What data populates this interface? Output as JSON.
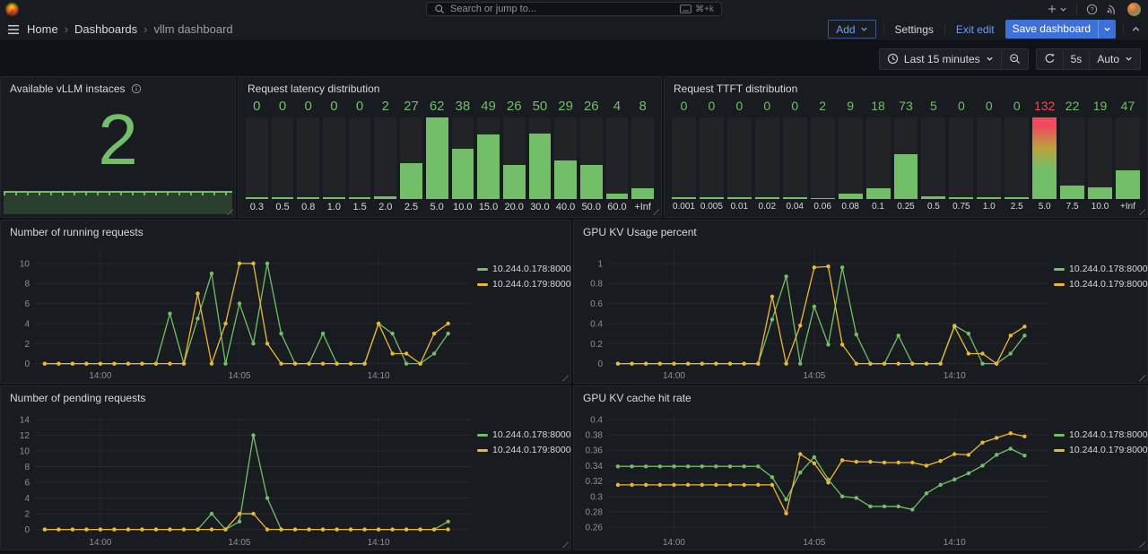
{
  "header": {
    "search": {
      "placeholder": "Search or jump to...",
      "shortcut": "⌘+k"
    },
    "breadcrumb": [
      "Home",
      "Dashboards",
      "vllm dashboard"
    ],
    "actions": {
      "add": "Add",
      "settings": "Settings",
      "exit_edit": "Exit edit",
      "save": "Save dashboard"
    }
  },
  "toolbar": {
    "time_range": "Last 15 minutes",
    "refresh_interval": "5s",
    "auto": "Auto"
  },
  "colors": {
    "green": "#73BF69",
    "yellow": "#EAB839",
    "red": "#F2495C",
    "blue": "#3D71D9",
    "link_blue": "#6E9FFF",
    "panel_bg": "#181b1f",
    "page_bg": "#111217"
  },
  "series_names": [
    "10.244.0.178:8000",
    "10.244.0.179:8000"
  ],
  "panels": {
    "stat": {
      "type": "stat",
      "title": "Available vLLM instaces",
      "value": "2",
      "color": "#73BF69"
    },
    "latency": {
      "type": "bar",
      "title": "Request latency distribution",
      "categories": [
        "0.3",
        "0.5",
        "0.8",
        "1.0",
        "1.5",
        "2.0",
        "2.5",
        "5.0",
        "10.0",
        "15.0",
        "20.0",
        "30.0",
        "40.0",
        "50.0",
        "60.0",
        "+Inf"
      ],
      "values": [
        0,
        0,
        0,
        0,
        0,
        2,
        27,
        62,
        38,
        49,
        26,
        50,
        29,
        26,
        4,
        8
      ]
    },
    "ttft": {
      "type": "bar",
      "title": "Request TTFT distribution",
      "categories": [
        "0.001",
        "0.005",
        "0.01",
        "0.02",
        "0.04",
        "0.06",
        "0.08",
        "0.1",
        "0.25",
        "0.5",
        "0.75",
        "1.0",
        "2.5",
        "5.0",
        "7.5",
        "10.0",
        "+Inf"
      ],
      "values": [
        0,
        0,
        0,
        0,
        0,
        2,
        9,
        18,
        73,
        5,
        0,
        0,
        0,
        132,
        22,
        19,
        47
      ],
      "hot_index": 13
    },
    "running": {
      "type": "line",
      "title": "Number of running requests",
      "ymin": -0.3,
      "ymax": 11.6,
      "yticks": [
        {
          "v": 0,
          "label": "0"
        },
        {
          "v": 2,
          "label": "2"
        },
        {
          "v": 4,
          "label": "4"
        },
        {
          "v": 6,
          "label": "6"
        },
        {
          "v": 8,
          "label": "8"
        },
        {
          "v": 10,
          "label": "10"
        }
      ],
      "xmin": -0.35,
      "xmax": 15.35,
      "x_start": 0,
      "x_step": 0.5,
      "xticks": [
        {
          "v": 2,
          "label": "14:00"
        },
        {
          "v": 7,
          "label": "14:05"
        },
        {
          "v": 12,
          "label": "14:10"
        }
      ],
      "series": [
        {
          "name": "10.244.0.178:8000",
          "color": "green",
          "values": [
            0,
            0,
            0,
            0,
            0,
            0,
            0,
            0,
            0,
            5,
            0,
            4.5,
            9,
            0,
            6,
            2,
            10,
            3,
            0,
            0,
            3,
            0,
            0,
            0,
            4,
            3,
            0,
            0,
            1,
            3
          ]
        },
        {
          "name": "10.244.0.179:8000",
          "color": "yellow",
          "values": [
            0,
            0,
            0,
            0,
            0,
            0,
            0,
            0,
            0,
            0,
            0,
            7,
            0,
            4,
            10,
            10,
            2,
            0,
            0,
            0,
            0,
            0,
            0,
            0,
            4,
            1,
            1,
            0,
            3,
            4
          ]
        }
      ]
    },
    "kv_usage": {
      "type": "line",
      "title": "GPU KV Usage percent",
      "ymin": -0.03,
      "ymax": 1.16,
      "yticks": [
        {
          "v": 0,
          "label": "0"
        },
        {
          "v": 0.2,
          "label": "0.2"
        },
        {
          "v": 0.4,
          "label": "0.4"
        },
        {
          "v": 0.6,
          "label": "0.6"
        },
        {
          "v": 0.8,
          "label": "0.8"
        },
        {
          "v": 1,
          "label": "1"
        }
      ],
      "xmin": -0.35,
      "xmax": 15.35,
      "x_start": 0,
      "x_step": 0.5,
      "xticks": [
        {
          "v": 2,
          "label": "14:00"
        },
        {
          "v": 7,
          "label": "14:05"
        },
        {
          "v": 12,
          "label": "14:10"
        }
      ],
      "series": [
        {
          "name": "10.244.0.178:8000",
          "color": "green",
          "values": [
            0,
            0,
            0,
            0,
            0,
            0,
            0,
            0,
            0,
            0,
            0,
            0.44,
            0.87,
            0,
            0.57,
            0.19,
            0.96,
            0.29,
            0,
            0,
            0.28,
            0,
            0,
            0,
            0.38,
            0.3,
            0,
            0,
            0.1,
            0.28
          ]
        },
        {
          "name": "10.244.0.179:8000",
          "color": "yellow",
          "values": [
            0,
            0,
            0,
            0,
            0,
            0,
            0,
            0,
            0,
            0,
            0,
            0.67,
            0,
            0.38,
            0.96,
            0.97,
            0.19,
            0,
            0,
            0,
            0,
            0,
            0,
            0,
            0.37,
            0.1,
            0.1,
            0,
            0.28,
            0.37
          ]
        }
      ]
    },
    "pending": {
      "type": "line",
      "title": "Number of pending requests",
      "ymin": -0.5,
      "ymax": 14.8,
      "yticks": [
        {
          "v": 0,
          "label": "0"
        },
        {
          "v": 2,
          "label": "2"
        },
        {
          "v": 4,
          "label": "4"
        },
        {
          "v": 6,
          "label": "6"
        },
        {
          "v": 8,
          "label": "8"
        },
        {
          "v": 10,
          "label": "10"
        },
        {
          "v": 12,
          "label": "12"
        },
        {
          "v": 14,
          "label": "14"
        }
      ],
      "xmin": -0.35,
      "xmax": 15.35,
      "x_start": 0,
      "x_step": 0.5,
      "xticks": [
        {
          "v": 2,
          "label": "14:00"
        },
        {
          "v": 7,
          "label": "14:05"
        },
        {
          "v": 12,
          "label": "14:10"
        }
      ],
      "series": [
        {
          "name": "10.244.0.178:8000",
          "color": "green",
          "values": [
            0,
            0,
            0,
            0,
            0,
            0,
            0,
            0,
            0,
            0,
            0,
            0,
            2,
            0,
            1,
            12,
            4,
            0,
            0,
            0,
            0,
            0,
            0,
            0,
            0,
            0,
            0,
            0,
            0,
            1
          ]
        },
        {
          "name": "10.244.0.179:8000",
          "color": "yellow",
          "values": [
            0,
            0,
            0,
            0,
            0,
            0,
            0,
            0,
            0,
            0,
            0,
            0,
            0,
            0,
            2,
            2,
            0,
            0,
            0,
            0,
            0,
            0,
            0,
            0,
            0,
            0,
            0,
            0,
            0,
            0
          ]
        }
      ]
    },
    "cache_hit": {
      "type": "line",
      "title": "GPU KV cache hit rate",
      "ymin": 0.252,
      "ymax": 0.408,
      "yticks": [
        {
          "v": 0.26,
          "label": "0.26"
        },
        {
          "v": 0.28,
          "label": "0.28"
        },
        {
          "v": 0.3,
          "label": "0.3"
        },
        {
          "v": 0.32,
          "label": "0.32"
        },
        {
          "v": 0.34,
          "label": "0.34"
        },
        {
          "v": 0.36,
          "label": "0.36"
        },
        {
          "v": 0.38,
          "label": "0.38"
        },
        {
          "v": 0.4,
          "label": "0.4"
        }
      ],
      "xmin": -0.35,
      "xmax": 15.35,
      "x_start": 0,
      "x_step": 0.5,
      "xticks": [
        {
          "v": 2,
          "label": "14:00"
        },
        {
          "v": 7,
          "label": "14:05"
        },
        {
          "v": 12,
          "label": "14:10"
        }
      ],
      "series": [
        {
          "name": "10.244.0.178:8000",
          "color": "green",
          "values": [
            0.339,
            0.339,
            0.339,
            0.339,
            0.339,
            0.339,
            0.339,
            0.339,
            0.339,
            0.339,
            0.339,
            0.325,
            0.296,
            0.331,
            0.351,
            0.322,
            0.3,
            0.298,
            0.287,
            0.287,
            0.287,
            0.283,
            0.304,
            0.315,
            0.322,
            0.33,
            0.34,
            0.354,
            0.362,
            0.353
          ]
        },
        {
          "name": "10.244.0.179:8000",
          "color": "yellow",
          "values": [
            0.315,
            0.315,
            0.315,
            0.315,
            0.315,
            0.315,
            0.315,
            0.315,
            0.315,
            0.315,
            0.315,
            0.315,
            0.278,
            0.355,
            0.343,
            0.318,
            0.347,
            0.345,
            0.345,
            0.344,
            0.344,
            0.344,
            0.34,
            0.346,
            0.355,
            0.354,
            0.37,
            0.376,
            0.382,
            0.378
          ]
        }
      ]
    }
  }
}
